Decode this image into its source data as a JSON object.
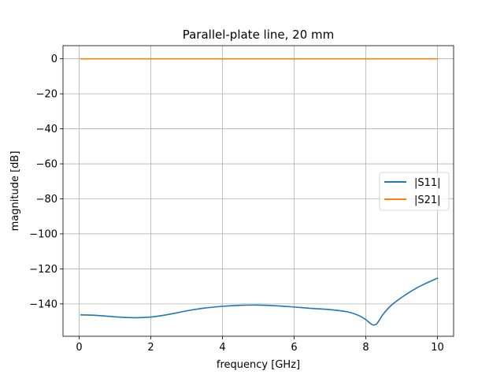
{
  "chart_data": {
    "type": "line",
    "title": "Parallel-plate line, 20 mm",
    "xlabel": "frequency [GHz]",
    "ylabel": "magnitude [dB]",
    "xlim": [
      -0.45,
      10.45
    ],
    "ylim": [
      -158.5,
      7.5
    ],
    "xticks": [
      0,
      2,
      4,
      6,
      8,
      10
    ],
    "xtick_labels": [
      "0",
      "2",
      "4",
      "6",
      "8",
      "10"
    ],
    "yticks": [
      0,
      -20,
      -40,
      -60,
      -80,
      -100,
      -120,
      -140
    ],
    "ytick_labels": [
      "0",
      "−20",
      "−40",
      "−60",
      "−80",
      "−100",
      "−120",
      "−140"
    ],
    "grid": true,
    "legend": "center-right",
    "series": [
      {
        "name": "|S11|",
        "color": "#1f77b4",
        "x": [
          0.05,
          0.5,
          1.0,
          1.5,
          2.0,
          2.5,
          3.0,
          3.5,
          4.0,
          4.5,
          5.0,
          5.5,
          6.0,
          6.5,
          7.0,
          7.5,
          7.8,
          8.0,
          8.1,
          8.2,
          8.3,
          8.4,
          8.5,
          8.7,
          9.0,
          9.3,
          9.6,
          10.0
        ],
        "y": [
          -146.3,
          -146.6,
          -147.4,
          -147.9,
          -147.5,
          -146.0,
          -144.0,
          -142.4,
          -141.4,
          -140.8,
          -140.7,
          -141.1,
          -141.8,
          -142.6,
          -143.3,
          -144.6,
          -146.6,
          -149.0,
          -150.7,
          -152.0,
          -151.5,
          -148.5,
          -145.5,
          -141.0,
          -136.3,
          -132.3,
          -129.0,
          -125.3
        ]
      },
      {
        "name": "|S21|",
        "color": "#ff7f0e",
        "x": [
          0.05,
          10.0
        ],
        "y": [
          0.0,
          0.0
        ]
      }
    ]
  }
}
